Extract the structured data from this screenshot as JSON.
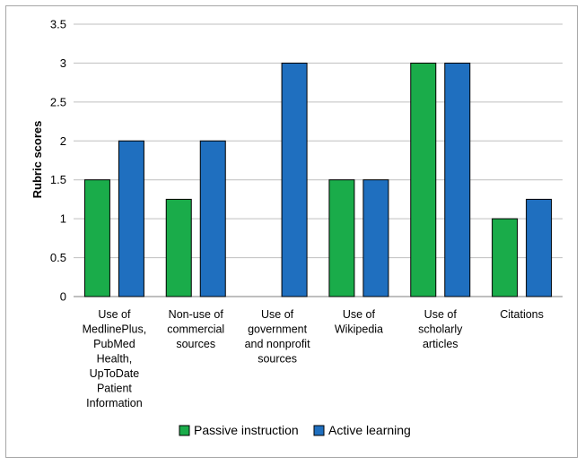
{
  "chart_data": {
    "type": "bar",
    "ylabel": "Rubric scores",
    "xlabel": "",
    "title": "",
    "ylim": [
      0,
      3.5
    ],
    "yticks": [
      "0",
      "0.5",
      "1",
      "1.5",
      "2",
      "2.5",
      "3",
      "3.5"
    ],
    "grid": true,
    "legend_position": "bottom",
    "categories": [
      [
        "Use of",
        "MedlinePlus,",
        "PubMed",
        "Health,",
        "UpToDate",
        "Patient",
        "Information"
      ],
      [
        "Non-use of",
        "commercial",
        "sources"
      ],
      [
        "Use of",
        "government",
        "and nonprofit",
        "sources"
      ],
      [
        "Use of",
        "Wikipedia"
      ],
      [
        "Use of",
        "scholarly",
        "articles"
      ],
      [
        "Citations"
      ]
    ],
    "series": [
      {
        "name": "Passive instruction",
        "color": "#1aac4a",
        "values": [
          1.5,
          1.25,
          0,
          1.5,
          3,
          1
        ]
      },
      {
        "name": "Active learning",
        "color": "#1f6fbf",
        "values": [
          2,
          2,
          3,
          1.5,
          3,
          1.25
        ]
      }
    ]
  }
}
